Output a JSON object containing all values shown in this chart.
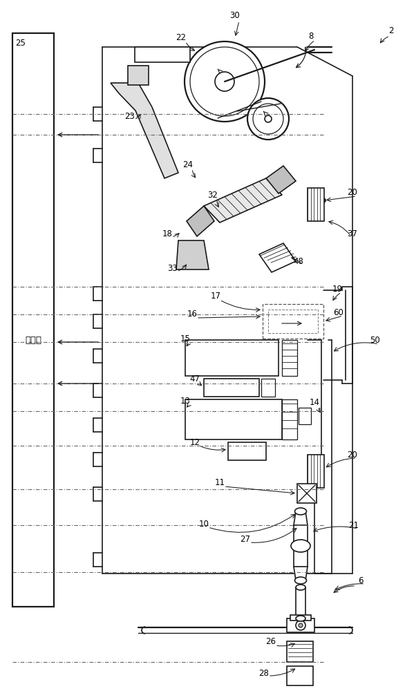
{
  "bg": "#ffffff",
  "lc": "#1a1a1a",
  "fig_w": 5.86,
  "fig_h": 10.0,
  "dpi": 100
}
